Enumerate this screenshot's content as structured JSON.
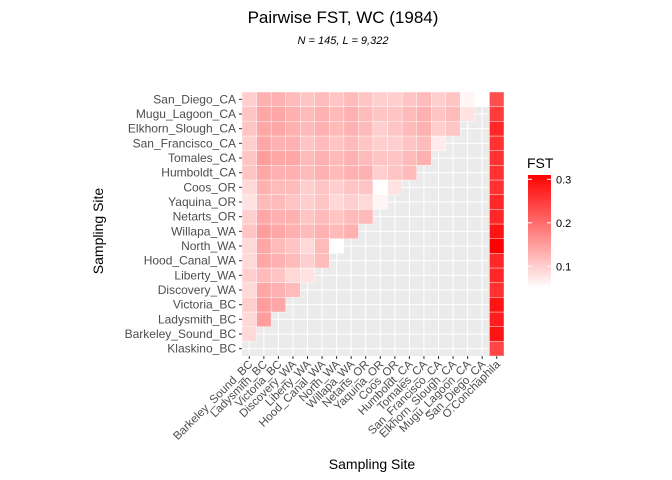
{
  "chart_data": {
    "type": "heatmap",
    "title": "Pairwise FST, WC (1984)",
    "subtitle": "N = 145, L = 9,322",
    "xlabel": "Sampling Site",
    "ylabel": "Sampling Site",
    "y_sites": [
      "Klaskino_BC",
      "Barkeley_Sound_BC",
      "Ladysmith_BC",
      "Victoria_BC",
      "Discovery_WA",
      "Liberty_WA",
      "Hood_Canal_WA",
      "North_WA",
      "Willapa_WA",
      "Netarts_OR",
      "Yaquina_OR",
      "Coos_OR",
      "Humboldt_CA",
      "Tomales_CA",
      "San_Francisco_CA",
      "Elkhorn_Slough_CA",
      "Mugu_Lagoon_CA",
      "San_Diego_CA"
    ],
    "x_sites": [
      "Barkeley_Sound_BC",
      "Ladysmith_BC",
      "Victoria_BC",
      "Discovery_WA",
      "Liberty_WA",
      "Hood_Canal_WA",
      "North_WA",
      "Willapa_WA",
      "Netarts_OR",
      "Yaquina_OR",
      "Coos_OR",
      "Humboldt_CA",
      "Tomales_CA",
      "San_Francisco_CA",
      "Elkhorn_Slough_CA",
      "Mugu_Lagoon_CA",
      "San_Diego_CA",
      "O.Conchaphila"
    ],
    "legend": {
      "title": "FST",
      "ticks": [
        0.1,
        0.2,
        0.3
      ],
      "tick_labels": [
        "0.1",
        "0.2",
        "0.3"
      ],
      "range": [
        0.05,
        0.31
      ],
      "low_color": "#ffffff",
      "high_color": "#ff0000",
      "position": "right"
    },
    "outgroup_fst": [
      0.24,
      0.29,
      0.28,
      0.29,
      0.26,
      0.27,
      0.27,
      0.31,
      0.29,
      0.27,
      0.27,
      0.26,
      0.26,
      0.26,
      0.26,
      0.27,
      0.25,
      0.23
    ],
    "within_fst": [
      [
        0.09
      ],
      [
        0.09,
        0.15
      ],
      [
        0.1,
        0.15,
        0.14
      ],
      [
        0.09,
        0.14,
        0.13,
        0.12
      ],
      [
        0.1,
        0.12,
        0.11,
        0.09,
        0.08
      ],
      [
        0.09,
        0.14,
        0.13,
        0.12,
        0.1,
        0.12
      ],
      [
        0.09,
        0.14,
        0.12,
        0.11,
        0.09,
        0.12,
        0.05
      ],
      [
        0.11,
        0.15,
        0.14,
        0.13,
        0.12,
        0.13,
        0.12,
        0.13
      ],
      [
        0.1,
        0.14,
        0.13,
        0.13,
        0.11,
        0.12,
        0.11,
        0.12,
        0.12
      ],
      [
        0.08,
        0.12,
        0.12,
        0.11,
        0.1,
        0.11,
        0.09,
        0.1,
        0.09,
        0.06
      ],
      [
        0.09,
        0.13,
        0.12,
        0.12,
        0.1,
        0.11,
        0.1,
        0.11,
        0.11,
        0.04,
        0.08
      ],
      [
        0.11,
        0.14,
        0.13,
        0.13,
        0.12,
        0.13,
        0.12,
        0.13,
        0.13,
        0.1,
        0.11,
        0.12
      ],
      [
        0.11,
        0.15,
        0.14,
        0.14,
        0.12,
        0.13,
        0.12,
        0.13,
        0.12,
        0.11,
        0.11,
        0.12,
        0.13
      ],
      [
        0.1,
        0.14,
        0.13,
        0.13,
        0.11,
        0.12,
        0.11,
        0.12,
        0.11,
        0.1,
        0.1,
        0.11,
        0.12,
        0.07
      ],
      [
        0.11,
        0.14,
        0.14,
        0.13,
        0.12,
        0.13,
        0.12,
        0.13,
        0.12,
        0.1,
        0.11,
        0.12,
        0.13,
        0.1,
        0.11
      ],
      [
        0.11,
        0.14,
        0.14,
        0.13,
        0.12,
        0.13,
        0.12,
        0.13,
        0.12,
        0.11,
        0.11,
        0.12,
        0.13,
        0.11,
        0.12,
        0.08
      ],
      [
        0.1,
        0.13,
        0.13,
        0.12,
        0.11,
        0.12,
        0.11,
        0.12,
        0.11,
        0.1,
        0.1,
        0.11,
        0.12,
        0.1,
        0.11,
        0.06,
        0.05
      ]
    ]
  }
}
